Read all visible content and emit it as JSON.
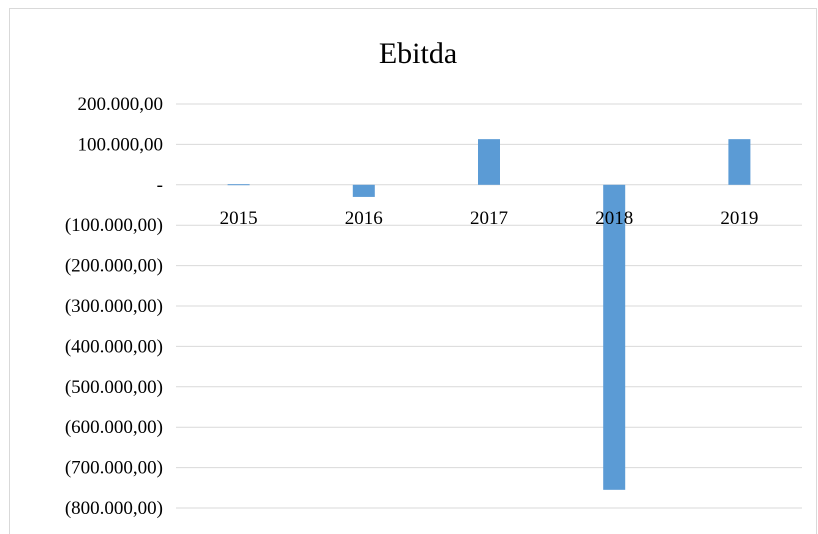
{
  "chart_data": {
    "type": "bar",
    "title": "Ebitda",
    "xlabel": "",
    "ylabel": "",
    "categories": [
      "2015",
      "2016",
      "2017",
      "2018",
      "2019"
    ],
    "series": [
      {
        "values": [
          1500,
          -30000,
          113000,
          -755000,
          113000
        ]
      }
    ],
    "ylim": [
      -800000,
      200000
    ],
    "yticks": [
      200000,
      100000,
      0,
      -100000,
      -200000,
      -300000,
      -400000,
      -500000,
      -600000,
      -700000,
      -800000
    ],
    "ytick_labels": [
      "200.000,00",
      "100.000,00",
      "-",
      "(100.000,00)",
      "(200.000,00)",
      "(300.000,00)",
      "(400.000,00)",
      "(500.000,00)",
      "(600.000,00)",
      "(700.000,00)",
      "(800.000,00)"
    ],
    "grid": true,
    "legend": "none",
    "bar_color": "#5b9bd5",
    "grid_color": "#d9d9d9"
  }
}
